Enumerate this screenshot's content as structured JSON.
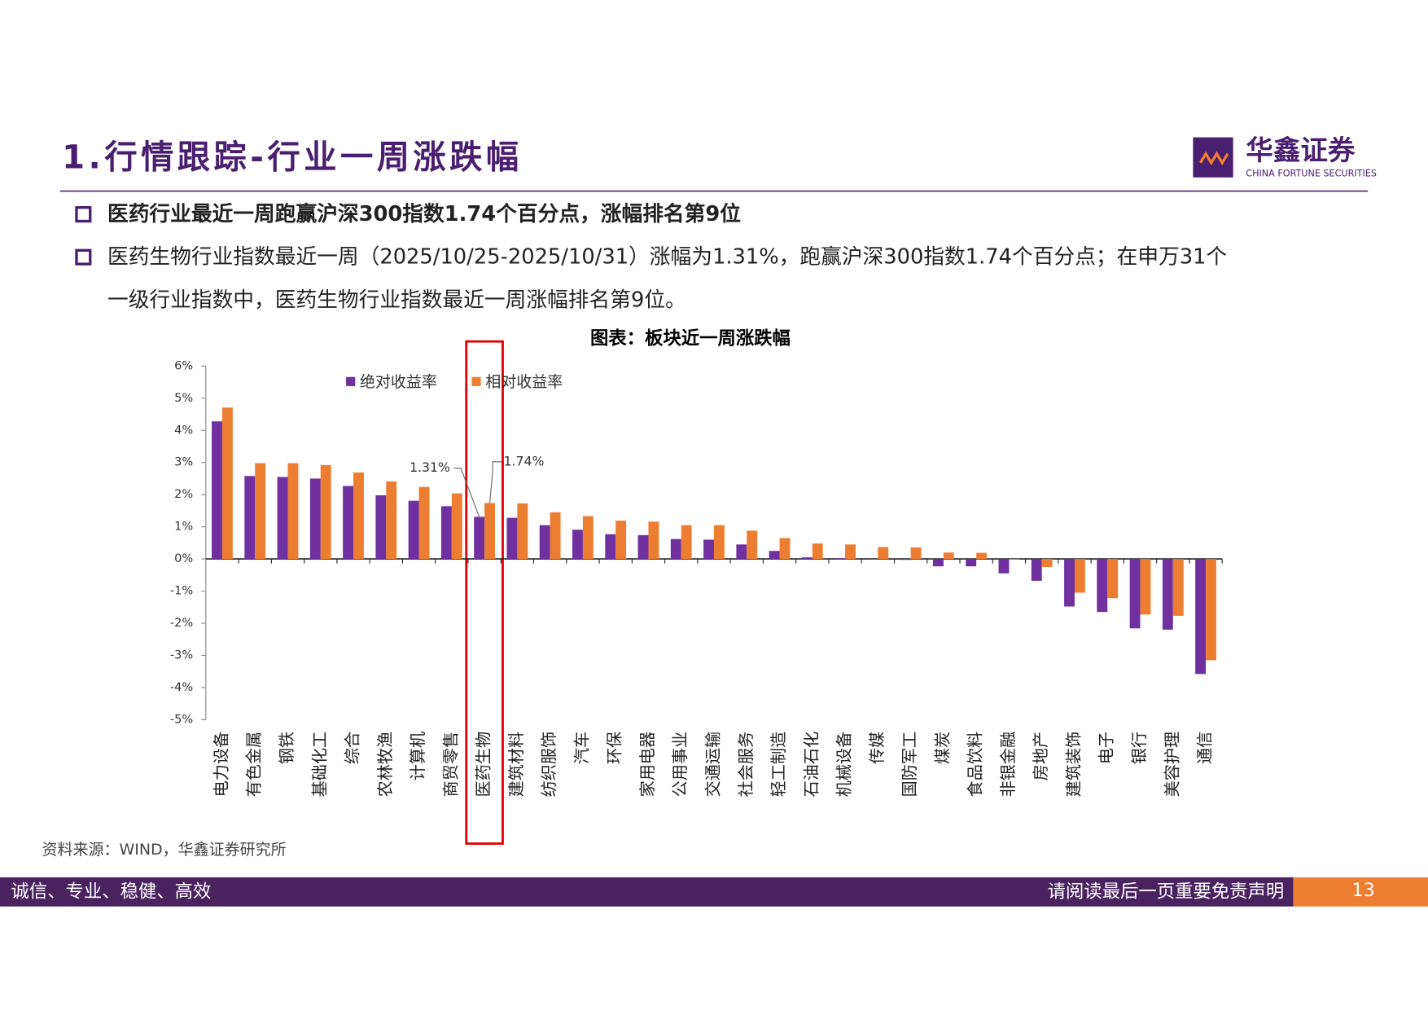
{
  "header": {
    "title": "1.行情跟踪-行业一周涨跌幅",
    "logo_name": "华鑫证券",
    "logo_en": "CHINA FORTUNE SECURITIES"
  },
  "bullets": [
    {
      "lines": [
        "医药行业最近一周跑赢沪深300指数1.74个百分点，涨幅排名第9位"
      ]
    },
    {
      "lines": [
        "医药生物行业指数最近一周（2025/10/25-2025/10/31）涨幅为1.31%，跑赢沪深300指数1.74个百分点；在申万31个",
        "一级行业指数中，医药生物行业指数最近一周涨幅排名第9位。"
      ]
    }
  ],
  "chart_data": {
    "type": "bar",
    "title": "图表：板块近一周涨跌幅",
    "categories": [
      "电力设备",
      "有色金属",
      "钢铁",
      "基础化工",
      "综合",
      "农林牧渔",
      "计算机",
      "商贸零售",
      "医药生物",
      "建筑材料",
      "纺织服饰",
      "汽车",
      "环保",
      "家用电器",
      "公用事业",
      "交通运输",
      "社会服务",
      "轻工制造",
      "石油石化",
      "机械设备",
      "传媒",
      "国防军工",
      "煤炭",
      "食品饮料",
      "非银金融",
      "房地产",
      "建筑装饰",
      "电子",
      "银行",
      "美容护理",
      "通信"
    ],
    "series": [
      {
        "name": "绝对收益率",
        "color": "#7030a0",
        "values": [
          4.28,
          2.58,
          2.55,
          2.5,
          2.27,
          1.98,
          1.81,
          1.64,
          1.31,
          1.28,
          1.05,
          0.91,
          0.77,
          0.74,
          0.62,
          0.6,
          0.45,
          0.25,
          0.05,
          0.02,
          -0.02,
          -0.03,
          -0.23,
          -0.23,
          -0.45,
          -0.68,
          -1.48,
          -1.65,
          -2.16,
          -2.2,
          -3.58
        ]
      },
      {
        "name": "相对收益率",
        "color": "#ed7d31",
        "values": [
          4.71,
          2.98,
          2.98,
          2.92,
          2.69,
          2.41,
          2.24,
          2.04,
          1.74,
          1.73,
          1.45,
          1.33,
          1.19,
          1.16,
          1.05,
          1.05,
          0.88,
          0.65,
          0.48,
          0.45,
          0.37,
          0.36,
          0.2,
          0.19,
          -0.02,
          -0.25,
          -1.05,
          -1.22,
          -1.73,
          -1.77,
          -3.15
        ]
      }
    ],
    "annotations": [
      {
        "text": "1.31%",
        "series": 0,
        "index": 8
      },
      {
        "text": "1.74%",
        "series": 1,
        "index": 8
      }
    ],
    "ylim": [
      -5,
      6
    ],
    "yticks": [
      {
        "value": -5,
        "label": "-5%"
      },
      {
        "value": -4,
        "label": "-4%"
      },
      {
        "value": -3,
        "label": "-3%"
      },
      {
        "value": -2,
        "label": "-2%"
      },
      {
        "value": -1,
        "label": "-1%"
      },
      {
        "value": 0,
        "label": "0%"
      },
      {
        "value": 1,
        "label": "1%"
      },
      {
        "value": 2,
        "label": "2%"
      },
      {
        "value": 3,
        "label": "3%"
      },
      {
        "value": 4,
        "label": "4%"
      },
      {
        "value": 5,
        "label": "5%"
      },
      {
        "value": 6,
        "label": "6%"
      }
    ],
    "grid": false,
    "legend": "top",
    "source": "资料来源：WIND，华鑫证券研究所"
  },
  "footer": {
    "motto": "诚信、专业、稳健、高效",
    "disclaimer": "请阅读最后一页重要免责声明",
    "page": "13"
  }
}
